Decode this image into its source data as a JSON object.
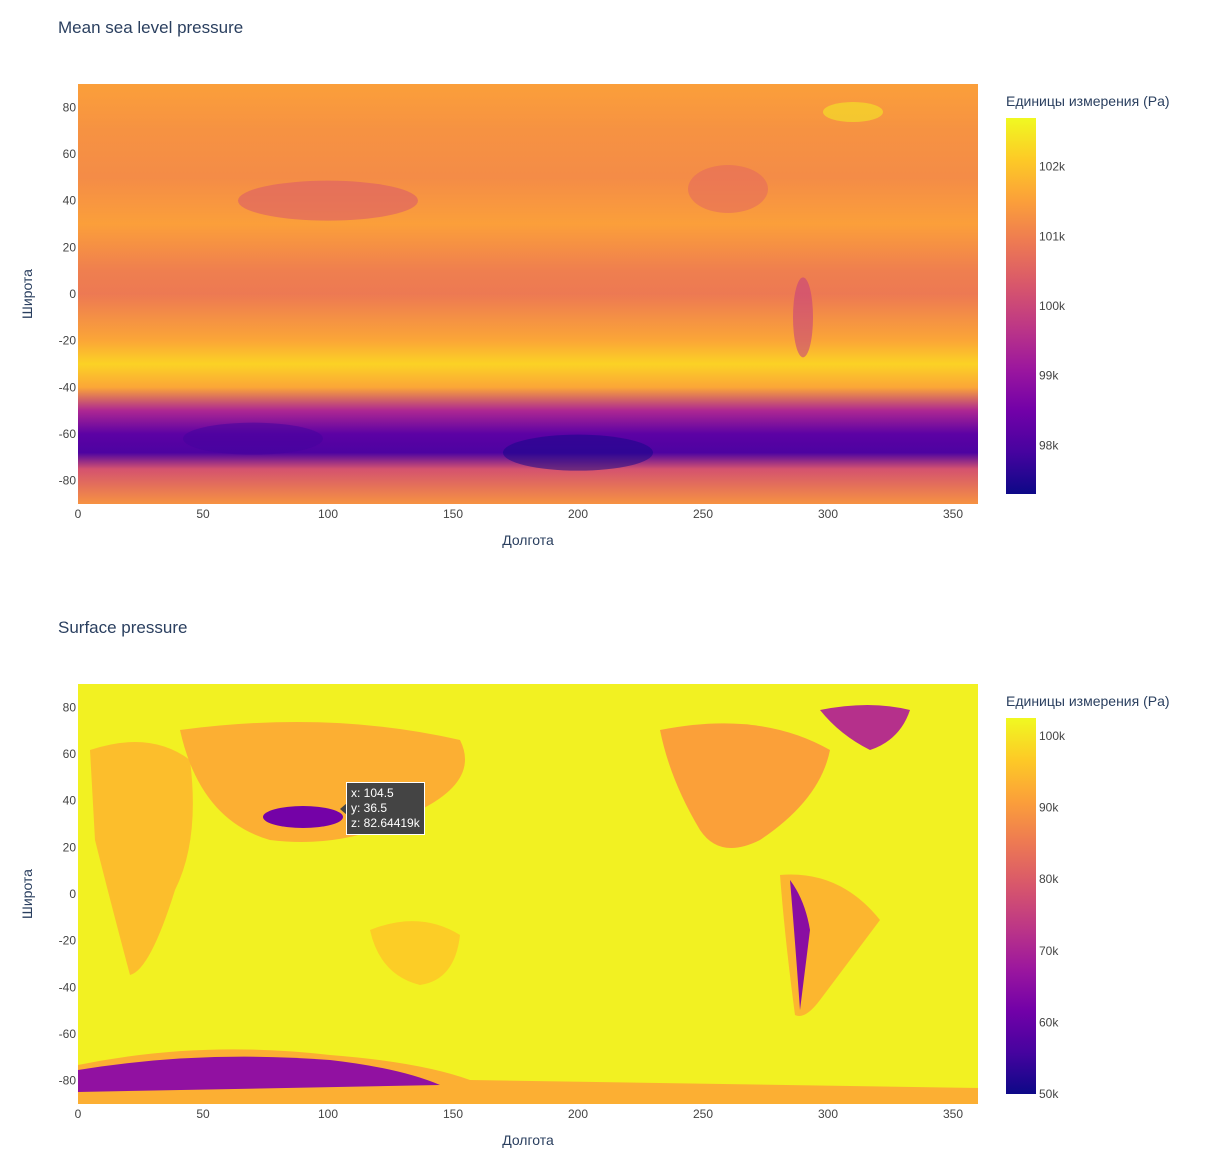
{
  "chart_data": [
    {
      "type": "heatmap",
      "title": "Mean sea level pressure",
      "xlabel": "Долгота",
      "ylabel": "Широта",
      "xlim": [
        0,
        360
      ],
      "ylim": [
        -90,
        90
      ],
      "xticks": [
        0,
        50,
        100,
        150,
        200,
        250,
        300,
        350
      ],
      "yticks": [
        80,
        60,
        40,
        20,
        0,
        -20,
        -40,
        -60,
        -80
      ],
      "colorbar": {
        "title": "Единицы измерения (Pa)",
        "min": 97300,
        "max": 102700,
        "ticks": [
          102000,
          101000,
          100000,
          99000,
          98000
        ],
        "tick_labels": [
          "102k",
          "101k",
          "100k",
          "99k",
          "98k"
        ]
      },
      "latitude_profile": [
        {
          "lat": 90,
          "value": 101500
        },
        {
          "lat": 70,
          "value": 101300
        },
        {
          "lat": 50,
          "value": 101200
        },
        {
          "lat": 30,
          "value": 101500
        },
        {
          "lat": 10,
          "value": 101000
        },
        {
          "lat": 0,
          "value": 100900
        },
        {
          "lat": -20,
          "value": 101600
        },
        {
          "lat": -30,
          "value": 102200
        },
        {
          "lat": -40,
          "value": 101600
        },
        {
          "lat": -50,
          "value": 99400
        },
        {
          "lat": -60,
          "value": 98200
        },
        {
          "lat": -68,
          "value": 98000
        },
        {
          "lat": -75,
          "value": 100200
        },
        {
          "lat": -90,
          "value": 101300
        }
      ],
      "colorscale": [
        "#0d0887",
        "#46039f",
        "#7201a8",
        "#9c179e",
        "#bd3786",
        "#d8576b",
        "#ed7953",
        "#fb9f3a",
        "#fdca26",
        "#f0f921"
      ]
    },
    {
      "type": "heatmap",
      "title": "Surface pressure",
      "xlabel": "Долгота",
      "ylabel": "Широта",
      "xlim": [
        0,
        360
      ],
      "ylim": [
        -90,
        90
      ],
      "xticks": [
        0,
        50,
        100,
        150,
        200,
        250,
        300,
        350
      ],
      "yticks": [
        80,
        60,
        40,
        20,
        0,
        -20,
        -40,
        -60,
        -80
      ],
      "colorbar": {
        "title": "Единицы измерения (Pa)",
        "min": 50000,
        "max": 102500,
        "ticks": [
          100000,
          90000,
          80000,
          70000,
          60000,
          50000
        ],
        "tick_labels": [
          "100k",
          "90k",
          "80k",
          "70k",
          "60k",
          "50k"
        ]
      },
      "colorscale": [
        "#0d0887",
        "#46039f",
        "#7201a8",
        "#9c179e",
        "#bd3786",
        "#d8576b",
        "#ed7953",
        "#fb9f3a",
        "#fdca26",
        "#f0f921"
      ],
      "hover": {
        "x_label": "x: 104.5",
        "y_label": "y: 36.5",
        "z_label": "z: 82.64419k"
      }
    }
  ]
}
